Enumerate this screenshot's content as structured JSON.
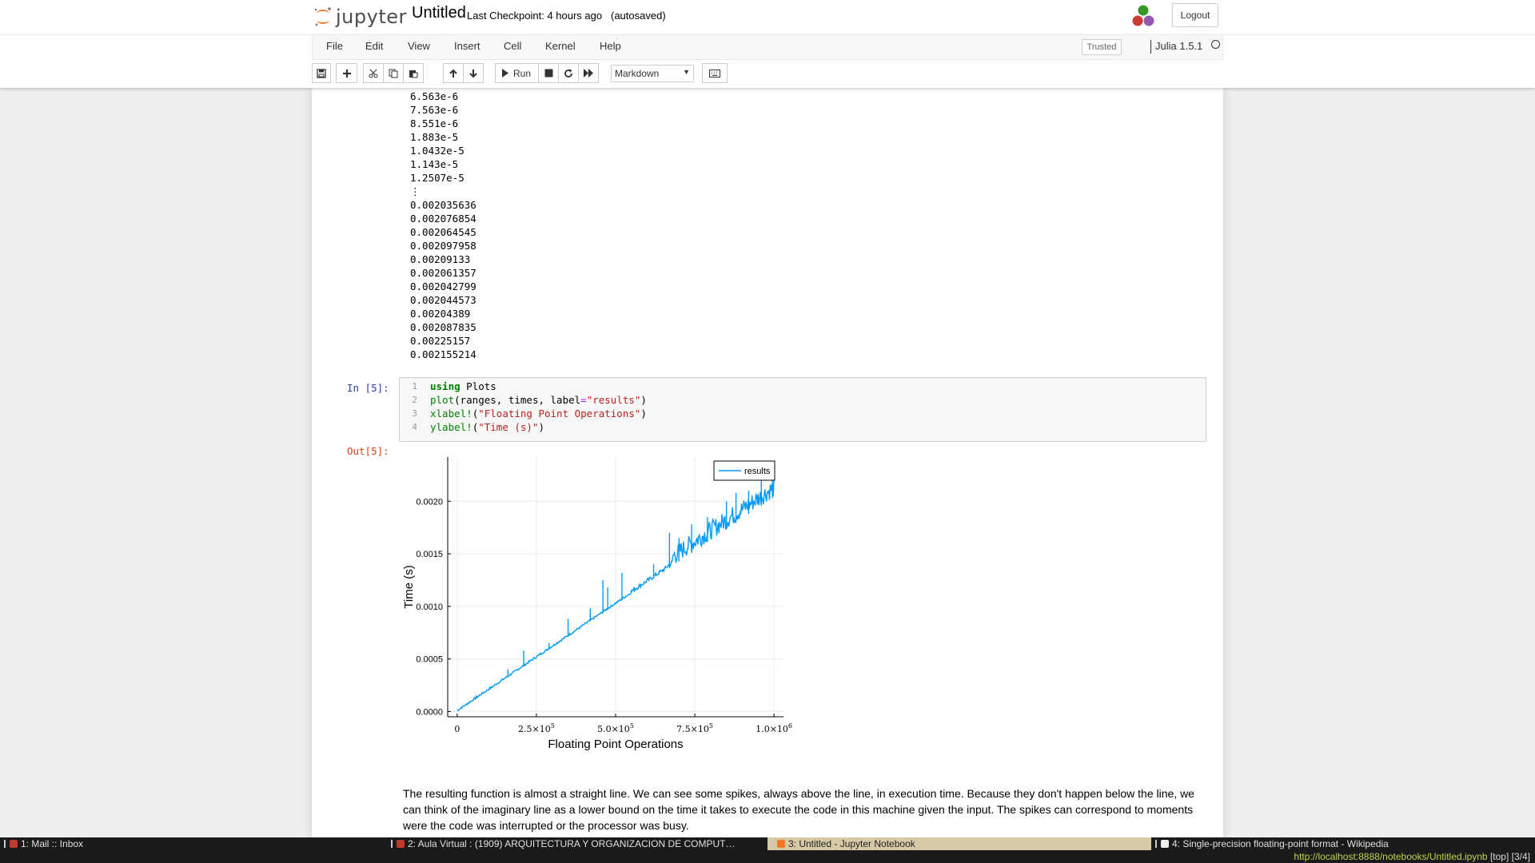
{
  "header": {
    "logo_text": "jupyter",
    "notebook_name": "Untitled",
    "checkpoint": "Last Checkpoint: 4 hours ago",
    "autosave": "(autosaved)",
    "logout": "Logout"
  },
  "menu": {
    "items": [
      "File",
      "Edit",
      "View",
      "Insert",
      "Cell",
      "Kernel",
      "Help"
    ],
    "trusted": "Trusted",
    "kernel_name": "Julia 1.5.1"
  },
  "toolbar": {
    "run_label": "Run",
    "cell_type": "Markdown"
  },
  "output_list": [
    "6.563e-6",
    "7.563e-6",
    "8.551e-6",
    "1.883e-5",
    "1.0432e-5",
    "1.143e-5",
    "1.2507e-5",
    "⋮",
    "0.002035636",
    "0.002076854",
    "0.002064545",
    "0.002097958",
    "0.00209133",
    "0.002061357",
    "0.002042799",
    "0.002044573",
    "0.00204389",
    "0.002087835",
    "0.00225157",
    "0.002155214"
  ],
  "code_cell": {
    "prompt": "In [5]:",
    "line_numbers": [
      "1",
      "2",
      "3",
      "4"
    ],
    "lines": {
      "l1_kw": "using",
      "l1_rest": " Plots",
      "l2_fn": "plot",
      "l2_a": "(ranges, times, label",
      "l2_op": "=",
      "l2_str": "\"results\"",
      "l2_end": ")",
      "l3_fn": "xlabel!",
      "l3_a": "(",
      "l3_str": "\"Floating Point Operations\"",
      "l3_end": ")",
      "l4_fn": "ylabel!",
      "l4_a": "(",
      "l4_str": "\"Time (s)\"",
      "l4_end": ")"
    }
  },
  "out_prompt": "Out[5]:",
  "chart_data": {
    "type": "line",
    "title": "",
    "xlabel": "Floating Point Operations",
    "ylabel": "Time (s)",
    "xlim": [
      -30000,
      1030000
    ],
    "ylim": [
      -5e-05,
      0.00242
    ],
    "x_ticks": [
      0,
      250000,
      500000,
      750000,
      1000000
    ],
    "x_tick_labels": [
      {
        "base": "0",
        "exp": ""
      },
      {
        "base": "2.5×10",
        "exp": "5"
      },
      {
        "base": "5.0×10",
        "exp": "5"
      },
      {
        "base": "7.5×10",
        "exp": "5"
      },
      {
        "base": "1.0×10",
        "exp": "6"
      }
    ],
    "y_ticks": [
      0,
      0.0005,
      0.001,
      0.0015,
      0.002
    ],
    "y_tick_labels": [
      "0.0000",
      "0.0005",
      "0.0010",
      "0.0015",
      "0.0020"
    ],
    "grid": true,
    "legend_position": "top-right",
    "series": [
      {
        "name": "results",
        "color": "#009af9",
        "baseline": {
          "x": [
            0,
            1000000
          ],
          "y": [
            0.0,
            0.00204
          ]
        },
        "spikes": [
          {
            "x": 60000,
            "y": 0.00015
          },
          {
            "x": 110000,
            "y": 0.00023
          },
          {
            "x": 160000,
            "y": 0.0004
          },
          {
            "x": 210000,
            "y": 0.00058
          },
          {
            "x": 290000,
            "y": 0.00065
          },
          {
            "x": 350000,
            "y": 0.00088
          },
          {
            "x": 420000,
            "y": 0.00098
          },
          {
            "x": 460000,
            "y": 0.00125
          },
          {
            "x": 475000,
            "y": 0.00118
          },
          {
            "x": 520000,
            "y": 0.00132
          },
          {
            "x": 560000,
            "y": 0.00118
          },
          {
            "x": 620000,
            "y": 0.0014
          },
          {
            "x": 670000,
            "y": 0.0017
          },
          {
            "x": 700000,
            "y": 0.00165
          },
          {
            "x": 740000,
            "y": 0.00178
          },
          {
            "x": 790000,
            "y": 0.00185
          },
          {
            "x": 850000,
            "y": 0.002
          },
          {
            "x": 880000,
            "y": 0.00208
          },
          {
            "x": 920000,
            "y": 0.0021
          },
          {
            "x": 960000,
            "y": 0.00222
          },
          {
            "x": 995000,
            "y": 0.0023
          }
        ]
      }
    ]
  },
  "markdown": {
    "text": "The resulting function is almost a straight line. We can see some spikes, always above the line, in execution time. Because they don't happen below the line, we can think of the imaginary line as a lower bound on the time it takes to execute the code in this machine given the input. The spikes can correspond to moments were the code was interrupted or the processor was busy."
  },
  "taskbar": {
    "tasks": [
      "1: Mail :: Inbox",
      "2: Aula Virtual : (1909) ARQUITECTURA Y ORGANIZACION DE COMPUT…",
      "3: Untitled - Jupyter Notebook",
      "4: Single-precision floating-point format - Wikipedia"
    ],
    "url": "http://localhost:8888/notebooks/Untitled.ipynb",
    "scroll_position": "[top]",
    "page_counter": "[3/4]"
  }
}
